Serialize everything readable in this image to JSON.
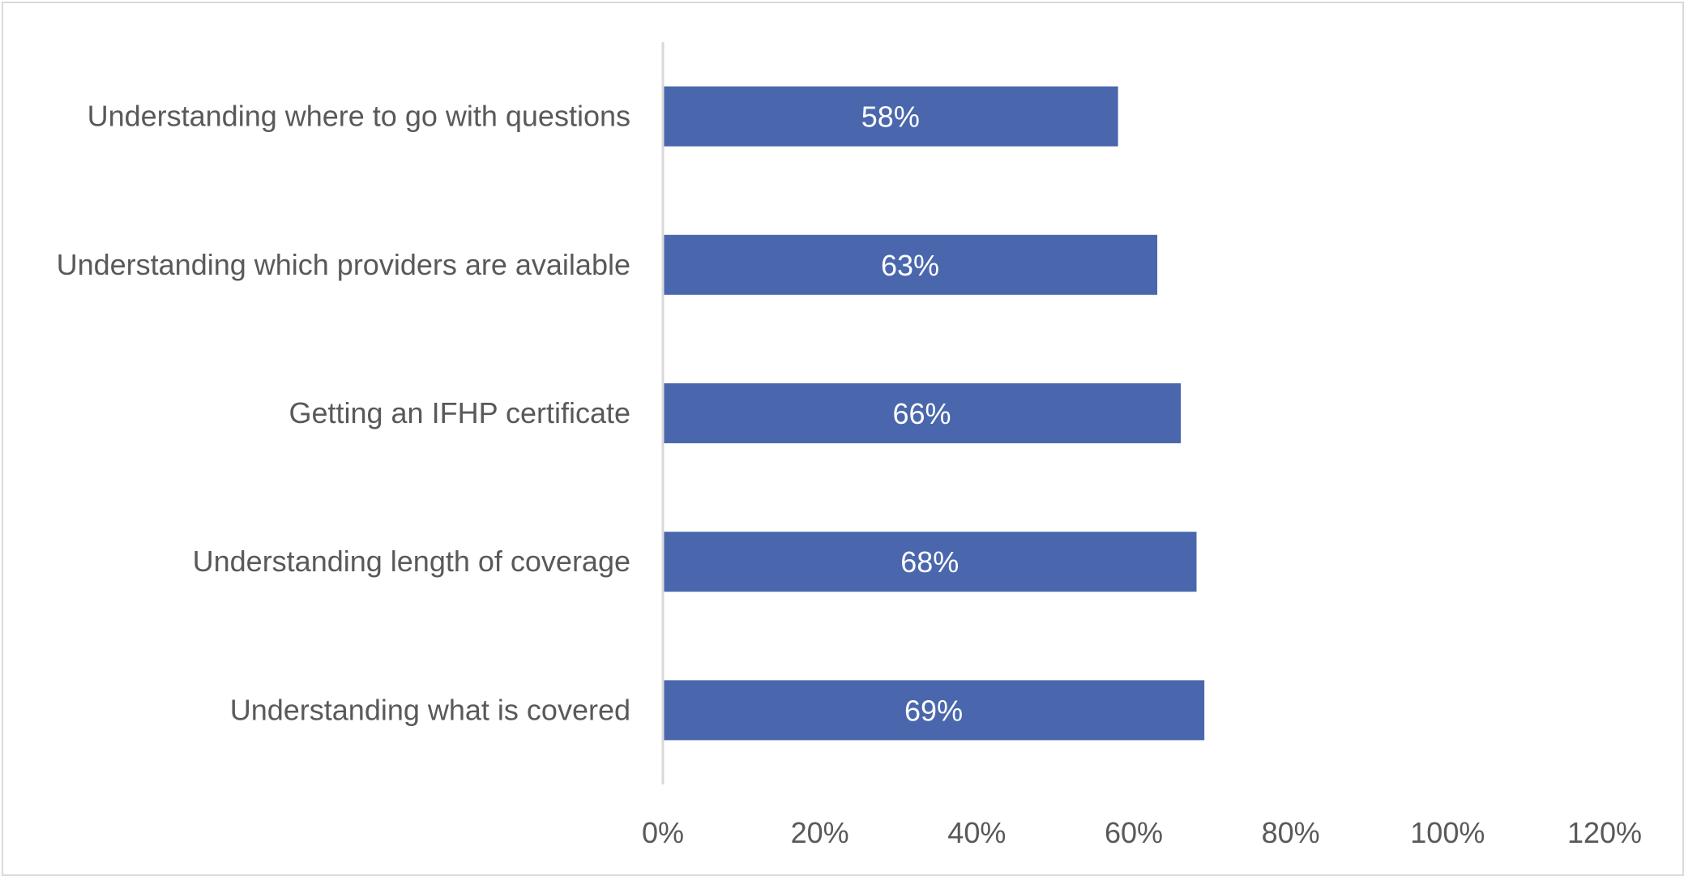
{
  "chart_data": {
    "type": "bar",
    "orientation": "horizontal",
    "categories": [
      "Understanding where to go with questions",
      "Understanding which providers are available",
      "Getting an IFHP certificate",
      "Understanding length of coverage",
      "Understanding what is covered"
    ],
    "values": [
      58,
      63,
      66,
      68,
      69
    ],
    "data_labels": [
      "58%",
      "63%",
      "66%",
      "68%",
      "69%"
    ],
    "xlim": [
      0,
      120
    ],
    "x_ticks": [
      0,
      20,
      40,
      60,
      80,
      100,
      120
    ],
    "x_tick_labels": [
      "0%",
      "20%",
      "40%",
      "60%",
      "80%",
      "100%",
      "120%"
    ],
    "title": "",
    "xlabel": "",
    "ylabel": "",
    "grid": false,
    "legend": "none",
    "bar_color": "#4a67ad",
    "axis_color": "#d9d9d9"
  }
}
